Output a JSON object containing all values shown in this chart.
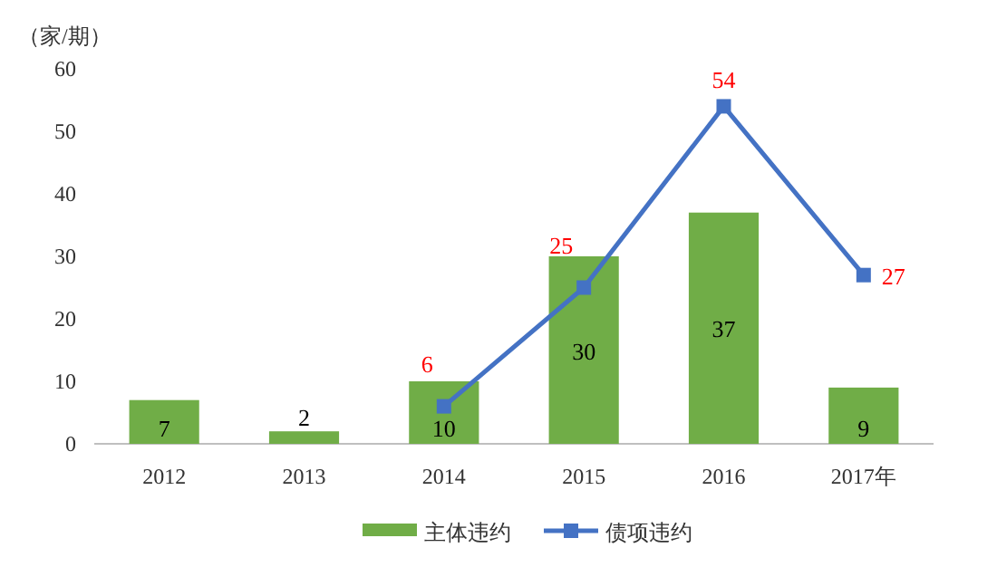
{
  "chart_data": {
    "type": "bar",
    "ylabel": "（家/期）",
    "categories": [
      "2012",
      "2013",
      "2014",
      "2015",
      "2016",
      "2017年"
    ],
    "series": [
      {
        "name": "主体违约",
        "color": "#70ad47",
        "values": [
          7,
          2,
          10,
          30,
          37,
          9
        ]
      },
      {
        "name": "债项违约",
        "type": "line",
        "color": "#4472c4",
        "marker": "square",
        "values": [
          null,
          null,
          6,
          25,
          54,
          27
        ]
      }
    ],
    "ylim": [
      0,
      60
    ],
    "yticks": [
      0,
      10,
      20,
      30,
      40,
      50,
      60
    ],
    "data_labels": true,
    "legend": "bottom"
  }
}
